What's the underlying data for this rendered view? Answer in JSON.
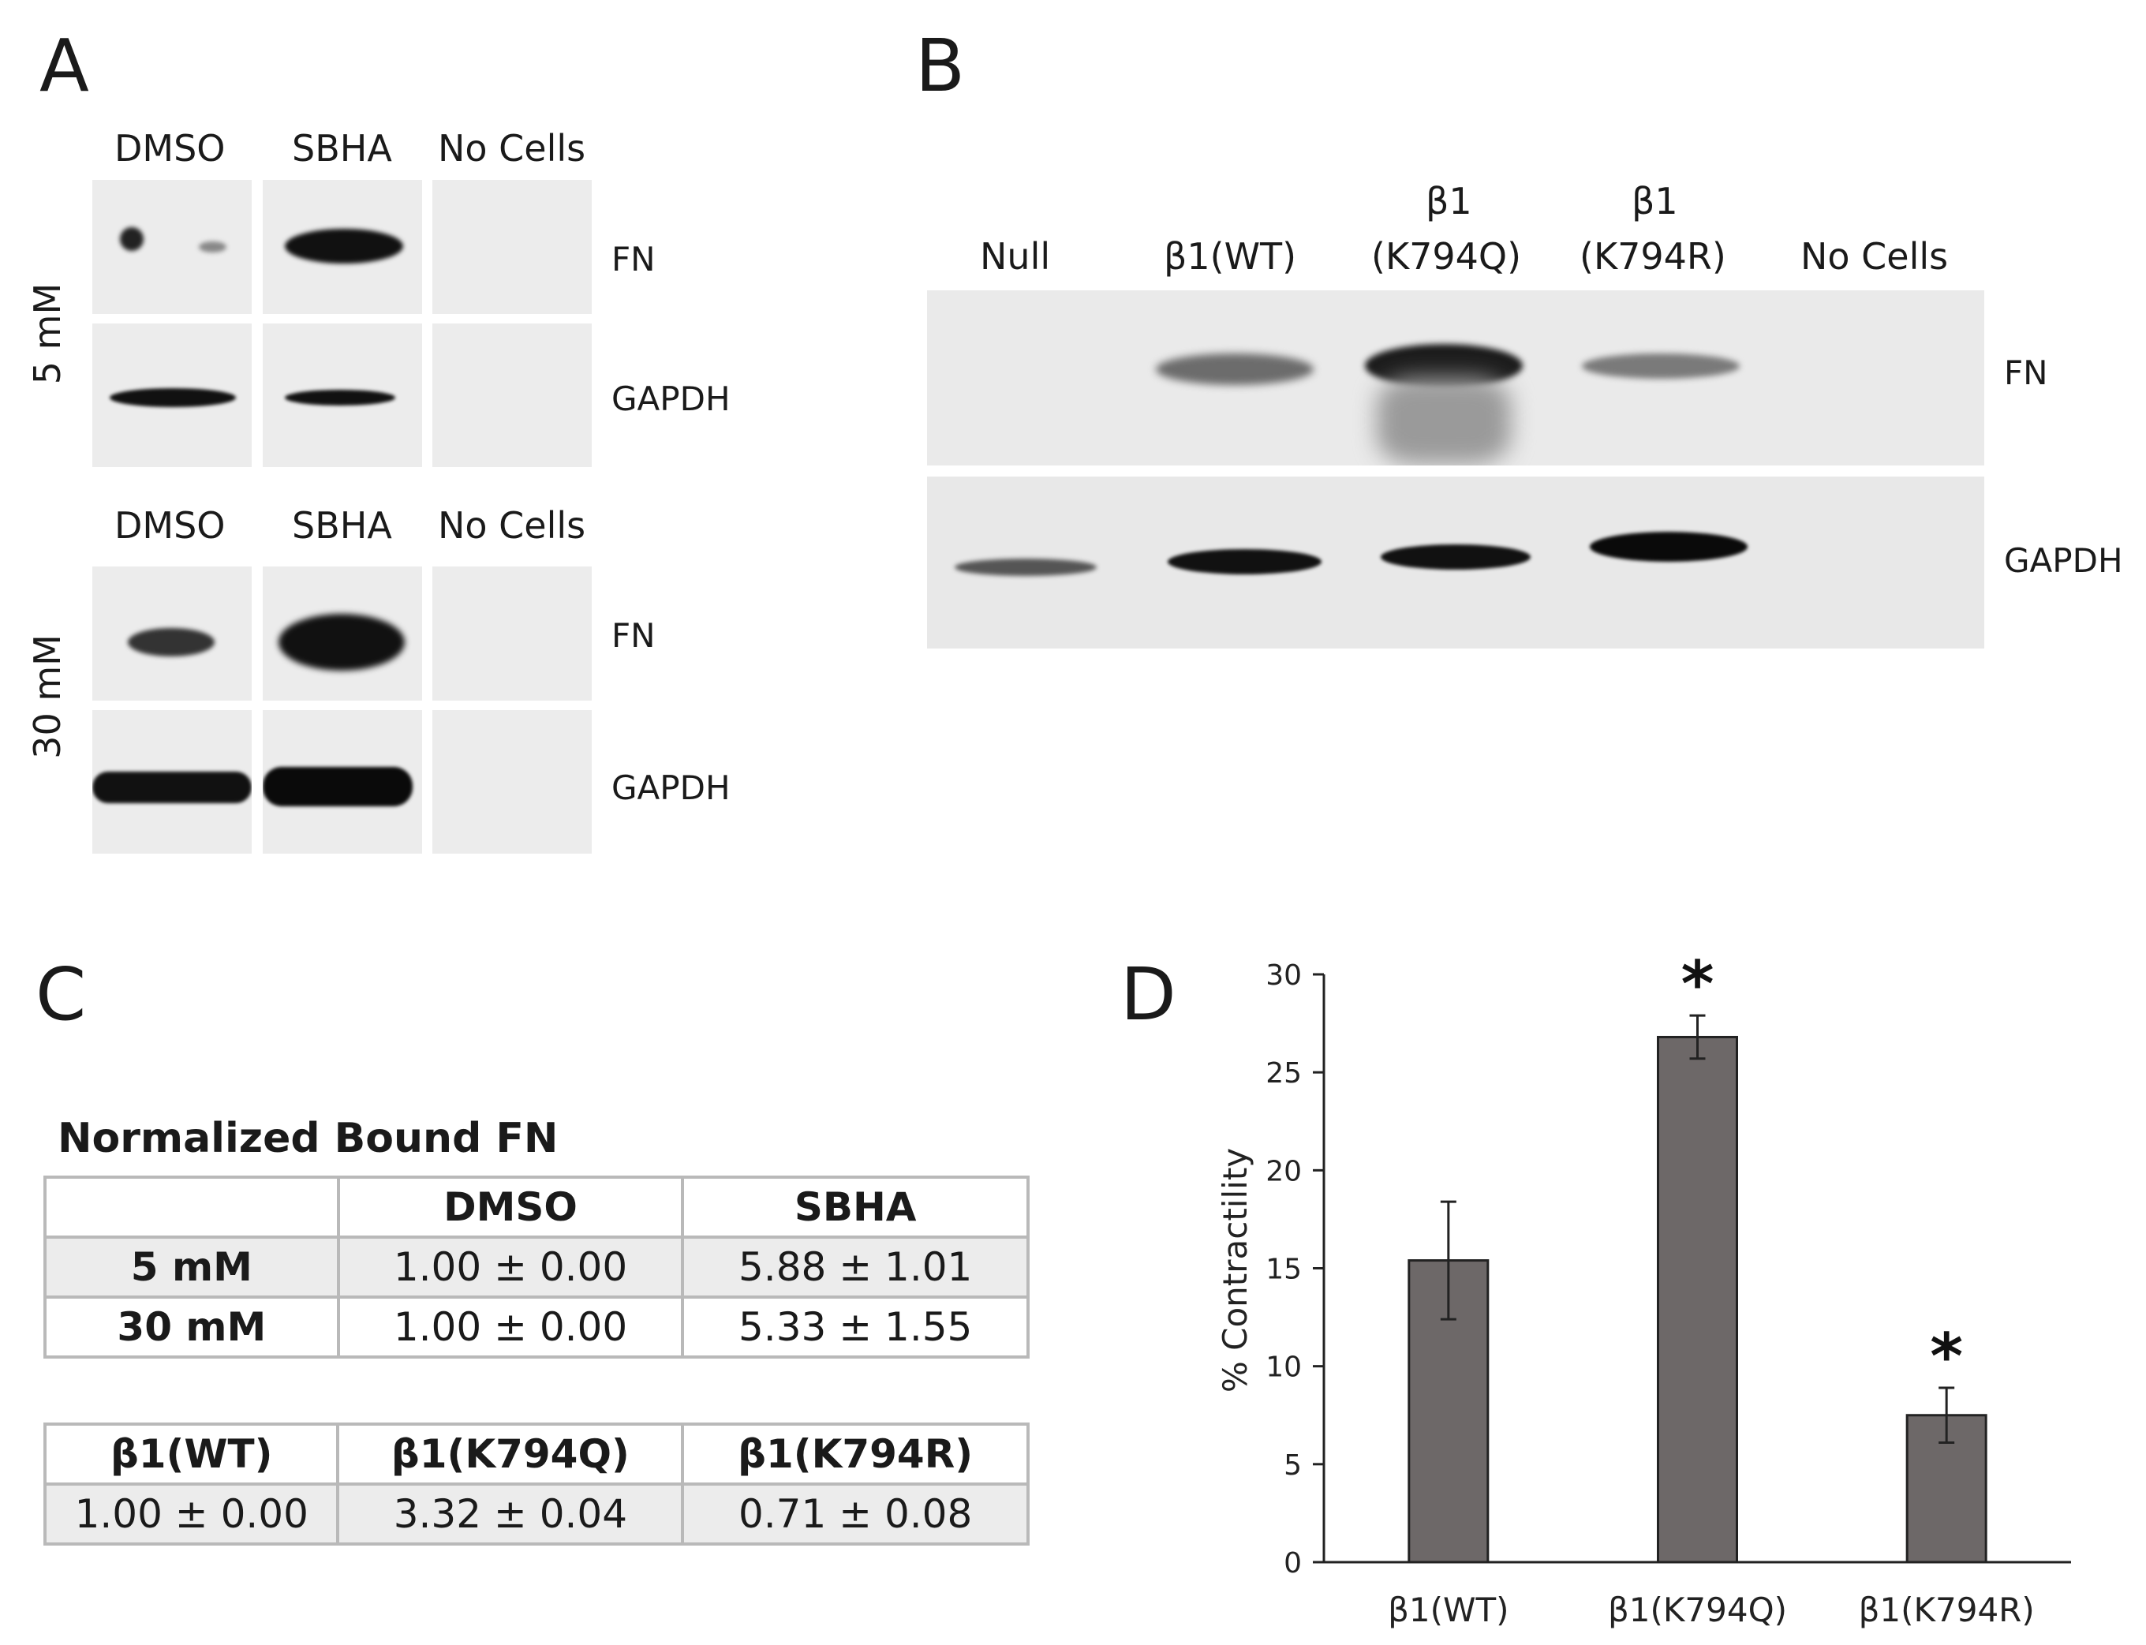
{
  "panels": {
    "a": "A",
    "b": "B",
    "c": "C",
    "d": "D"
  },
  "panel_a": {
    "top": {
      "dose": "5 mM",
      "lanes": [
        "DMSO",
        "SBHA",
        "No Cells"
      ],
      "rows": [
        "FN",
        "GAPDH"
      ]
    },
    "bottom": {
      "dose": "30 mM",
      "lanes": [
        "DMSO",
        "SBHA",
        "No Cells"
      ],
      "rows": [
        "FN",
        "GAPDH"
      ]
    }
  },
  "panel_b": {
    "lanes": [
      {
        "line1": "",
        "line2": "Null"
      },
      {
        "line1": "",
        "line2": "β1(WT)"
      },
      {
        "line1": "β1",
        "line2": "(K794Q)"
      },
      {
        "line1": "β1",
        "line2": "(K794R)"
      },
      {
        "line1": "",
        "line2": "No Cells"
      }
    ],
    "rows": [
      "FN",
      "GAPDH"
    ]
  },
  "panel_c": {
    "title": "Normalized Bound FN",
    "table1": {
      "header": [
        "",
        "DMSO",
        "SBHA"
      ],
      "rows": [
        [
          "5 mM",
          "1.00 ± 0.00",
          "5.88 ± 1.01"
        ],
        [
          "30 mM",
          "1.00 ± 0.00",
          "5.33 ± 1.55"
        ]
      ]
    },
    "table2": {
      "header": [
        "β1(WT)",
        "β1(K794Q)",
        "β1(K794R)"
      ],
      "row": [
        "1.00 ± 0.00",
        "3.32 ± 0.04",
        "0.71 ± 0.08"
      ]
    }
  },
  "chart_data": {
    "type": "bar",
    "categories": [
      "β1(WT)",
      "β1(K794Q)",
      "β1(K794R)"
    ],
    "values": [
      15.4,
      26.8,
      7.5
    ],
    "errors": [
      3.0,
      1.1,
      1.4
    ],
    "significance": [
      "",
      "*",
      "*"
    ],
    "ylabel": "% Contractility",
    "ylim": [
      0,
      30
    ],
    "yticks": [
      0,
      5,
      10,
      15,
      20,
      25,
      30
    ],
    "bar_color": "#6d6868",
    "grid": false
  }
}
